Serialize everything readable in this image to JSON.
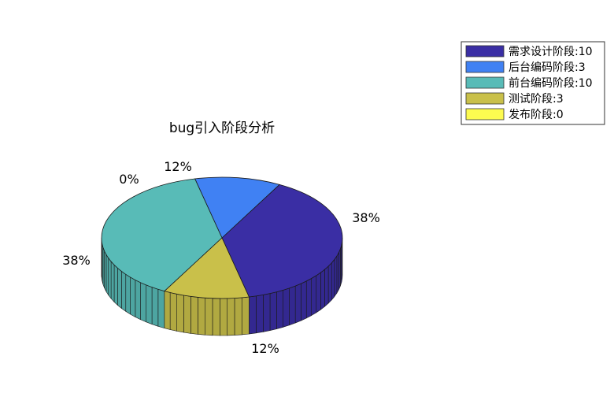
{
  "chart_data": {
    "type": "pie",
    "title": "bug引入阶段分析",
    "three_d": true,
    "legend_placement": "top-right",
    "slices": [
      {
        "name": "需求设计阶段:10",
        "value": 10,
        "label": "38%",
        "color": "#3a2ea4"
      },
      {
        "name": "后台编码阶段:3",
        "value": 3,
        "label": "12%",
        "color": "#4081f3"
      },
      {
        "name": "前台编码阶段:10",
        "value": 10,
        "label": "38%",
        "color": "#58bbb7"
      },
      {
        "name": "测试阶段:3",
        "value": 3,
        "label": "12%",
        "color": "#c9c04a"
      },
      {
        "name": "发布阶段:0",
        "value": 0,
        "label": "0%",
        "color": "#fdfb50"
      }
    ]
  }
}
